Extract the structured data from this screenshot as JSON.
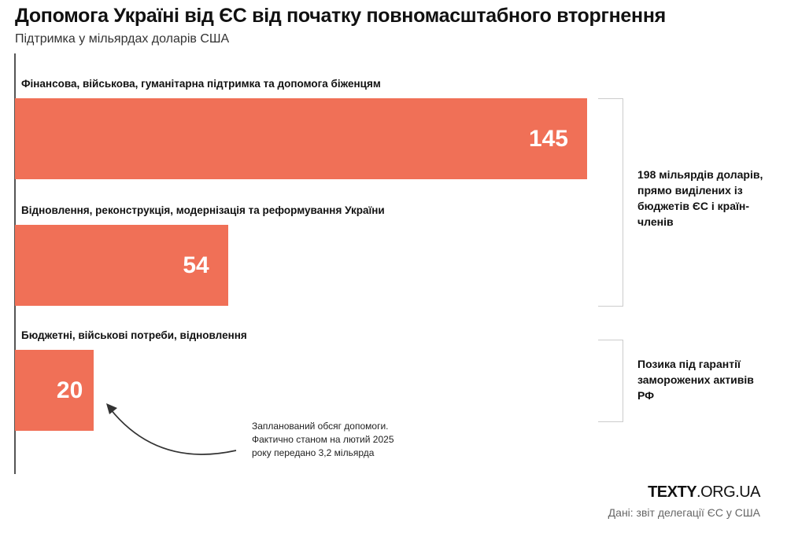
{
  "header": {
    "title": "Допомога Україні від ЄС від початку повномасштабного вторгнення",
    "subtitle": "Підтримка у мільярдах доларів США"
  },
  "chart_data": {
    "type": "bar",
    "orientation": "horizontal",
    "title": "Допомога Україні від ЄС від початку повномасштабного вторгнення",
    "subtitle": "Підтримка у мільярдах доларів США",
    "categories": [
      "Фінансова, військова, гуманітарна підтримка та допомога біженцям",
      "Відновлення, реконструкція, модернізація та реформування України",
      "Бюджетні, військові потреби, відновлення"
    ],
    "values": [
      145,
      54,
      20
    ],
    "color": "#f07057",
    "xlim": [
      0,
      145
    ],
    "groups": [
      {
        "label": "198 мільярдів доларів, прямо виділених із бюджетів ЄС і країн-членів",
        "bars": [
          0,
          1
        ]
      },
      {
        "label": "Позика під гарантії заморожених активів РФ",
        "bars": [
          2
        ]
      }
    ],
    "annotation": "Запланований обсяг допомоги. Фактично станом на лютий 2025 року передано 3,2 мільярда"
  },
  "note_lines": [
    "Запланований обсяг допомоги.",
    "Фактично станом на лютий 2025",
    "року передано 3,2 мільярда"
  ],
  "footer": {
    "logo_bold": "TEXTY",
    "logo_rest": ".ORG.UA",
    "source": "Дані: звіт делегації ЄС у США"
  }
}
